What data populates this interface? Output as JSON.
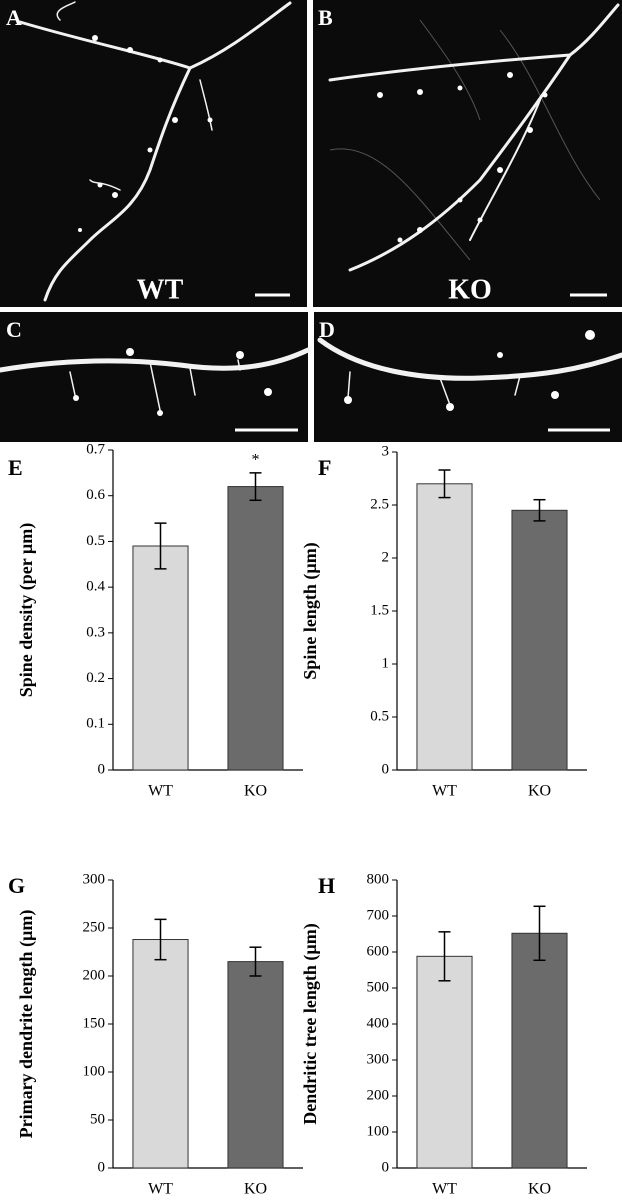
{
  "images": [
    {
      "panel": "A",
      "label": "WT"
    },
    {
      "panel": "B",
      "label": "KO"
    },
    {
      "panel": "C"
    },
    {
      "panel": "D"
    }
  ],
  "chart_data": [
    {
      "type": "bar",
      "panel": "E",
      "ylabel": "Spine density (per µm)",
      "categories": [
        "WT",
        "KO"
      ],
      "values": [
        0.49,
        0.62
      ],
      "errors": [
        0.05,
        0.03
      ],
      "colors": [
        "#d9d9d9",
        "#6b6b6b"
      ],
      "value_annotations": [
        null,
        "*"
      ],
      "ylim": [
        0,
        0.7
      ],
      "yticks": [
        0,
        0.1,
        0.2,
        0.3,
        0.4,
        0.5,
        0.6,
        0.7
      ]
    },
    {
      "type": "bar",
      "panel": "F",
      "ylabel": "Spine length (µm)",
      "categories": [
        "WT",
        "KO"
      ],
      "values": [
        2.7,
        2.45
      ],
      "errors": [
        0.13,
        0.1
      ],
      "colors": [
        "#d9d9d9",
        "#6b6b6b"
      ],
      "ylim": [
        0,
        3
      ],
      "yticks": [
        0,
        0.5,
        1,
        1.5,
        2,
        2.5,
        3
      ]
    },
    {
      "type": "bar",
      "panel": "G",
      "ylabel": "Primary dendrite length (µm)",
      "categories": [
        "WT",
        "KO"
      ],
      "values": [
        238,
        215
      ],
      "errors": [
        21,
        15
      ],
      "colors": [
        "#d9d9d9",
        "#6b6b6b"
      ],
      "ylim": [
        0,
        300
      ],
      "yticks": [
        0,
        50,
        100,
        150,
        200,
        250,
        300
      ]
    },
    {
      "type": "bar",
      "panel": "H",
      "ylabel": "Dendritic tree length (µm)",
      "categories": [
        "WT",
        "KO"
      ],
      "values": [
        588,
        652
      ],
      "errors": [
        68,
        75
      ],
      "colors": [
        "#d9d9d9",
        "#6b6b6b"
      ],
      "ylim": [
        0,
        800
      ],
      "yticks": [
        0,
        100,
        200,
        300,
        400,
        500,
        600,
        700,
        800
      ]
    }
  ]
}
